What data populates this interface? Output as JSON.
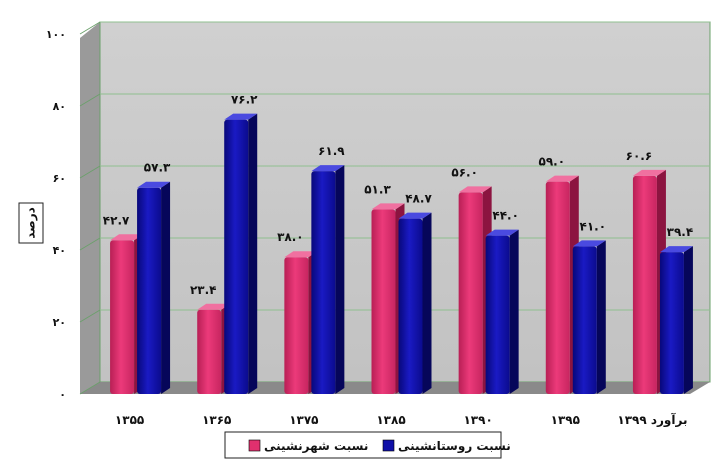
{
  "chart_data": {
    "type": "bar",
    "title": "",
    "xlabel": "",
    "ylabel": "درصد",
    "ylim": [
      0,
      100
    ],
    "y_ticks": [
      "۰",
      "۲۰",
      "۴۰",
      "۶۰",
      "۸۰",
      "۱۰۰"
    ],
    "categories": [
      "۱۳۵۵",
      "۱۳۶۵",
      "۱۳۷۵",
      "۱۳۸۵",
      "۱۳۹۰",
      "۱۳۹۵",
      "برآورد ۱۳۹۹"
    ],
    "series": [
      {
        "name": "نسبت شهرنشینی",
        "color": "#e0306e",
        "values": [
          42.7,
          23.4,
          38.0,
          51.3,
          56.0,
          59.0,
          60.6
        ],
        "labels": [
          "۴۲.۷",
          "۲۳.۴",
          "۳۸.۰",
          "۵۱.۳",
          "۵۶.۰",
          "۵۹.۰",
          "۶۰.۶"
        ]
      },
      {
        "name": "نسبت روستانشینی",
        "color": "#1010a8",
        "values": [
          57.3,
          76.2,
          61.9,
          48.7,
          44.0,
          41.0,
          39.4
        ],
        "labels": [
          "۵۷.۳",
          "۷۶.۲",
          "۶۱.۹",
          "۴۸.۷",
          "۴۴.۰",
          "۴۱.۰",
          "۳۹.۴"
        ]
      }
    ],
    "grid": true,
    "legend": "bottom-center"
  }
}
